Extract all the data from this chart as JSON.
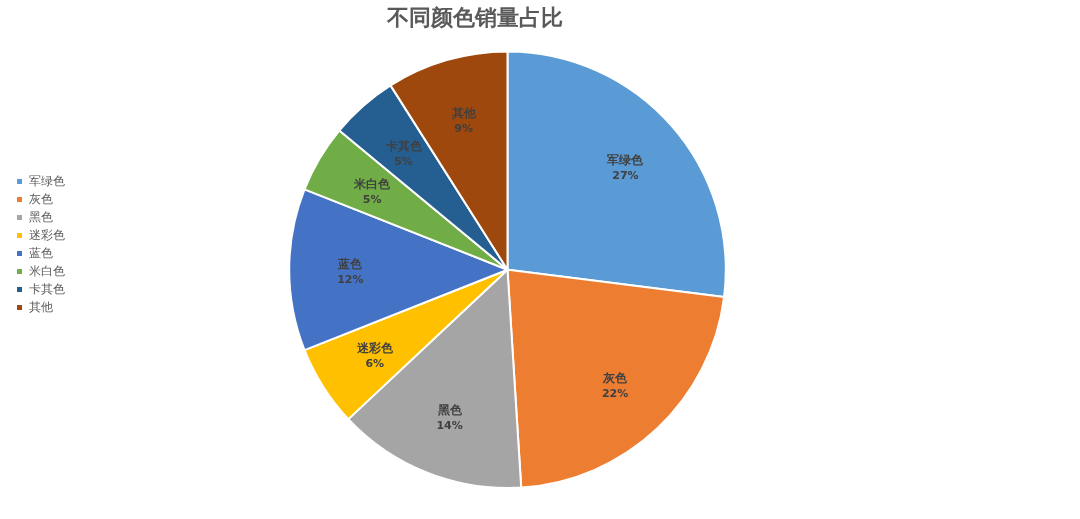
{
  "chart_data": {
    "type": "pie",
    "title": "不同颜色销量占比",
    "categories": [
      "军绿色",
      "灰色",
      "黑色",
      "迷彩色",
      "蓝色",
      "米白色",
      "卡其色",
      "其他"
    ],
    "values": [
      27,
      22,
      14,
      6,
      12,
      5,
      5,
      9
    ],
    "value_labels": [
      "27%",
      "22%",
      "14%",
      "6%",
      "12%",
      "5%",
      "5%",
      "9%"
    ],
    "colors": [
      "#5b9bd5",
      "#ed7d31",
      "#a5a5a5",
      "#ffc000",
      "#4472c4",
      "#70ad47",
      "#255e91",
      "#9e480e"
    ],
    "legend": "left"
  }
}
